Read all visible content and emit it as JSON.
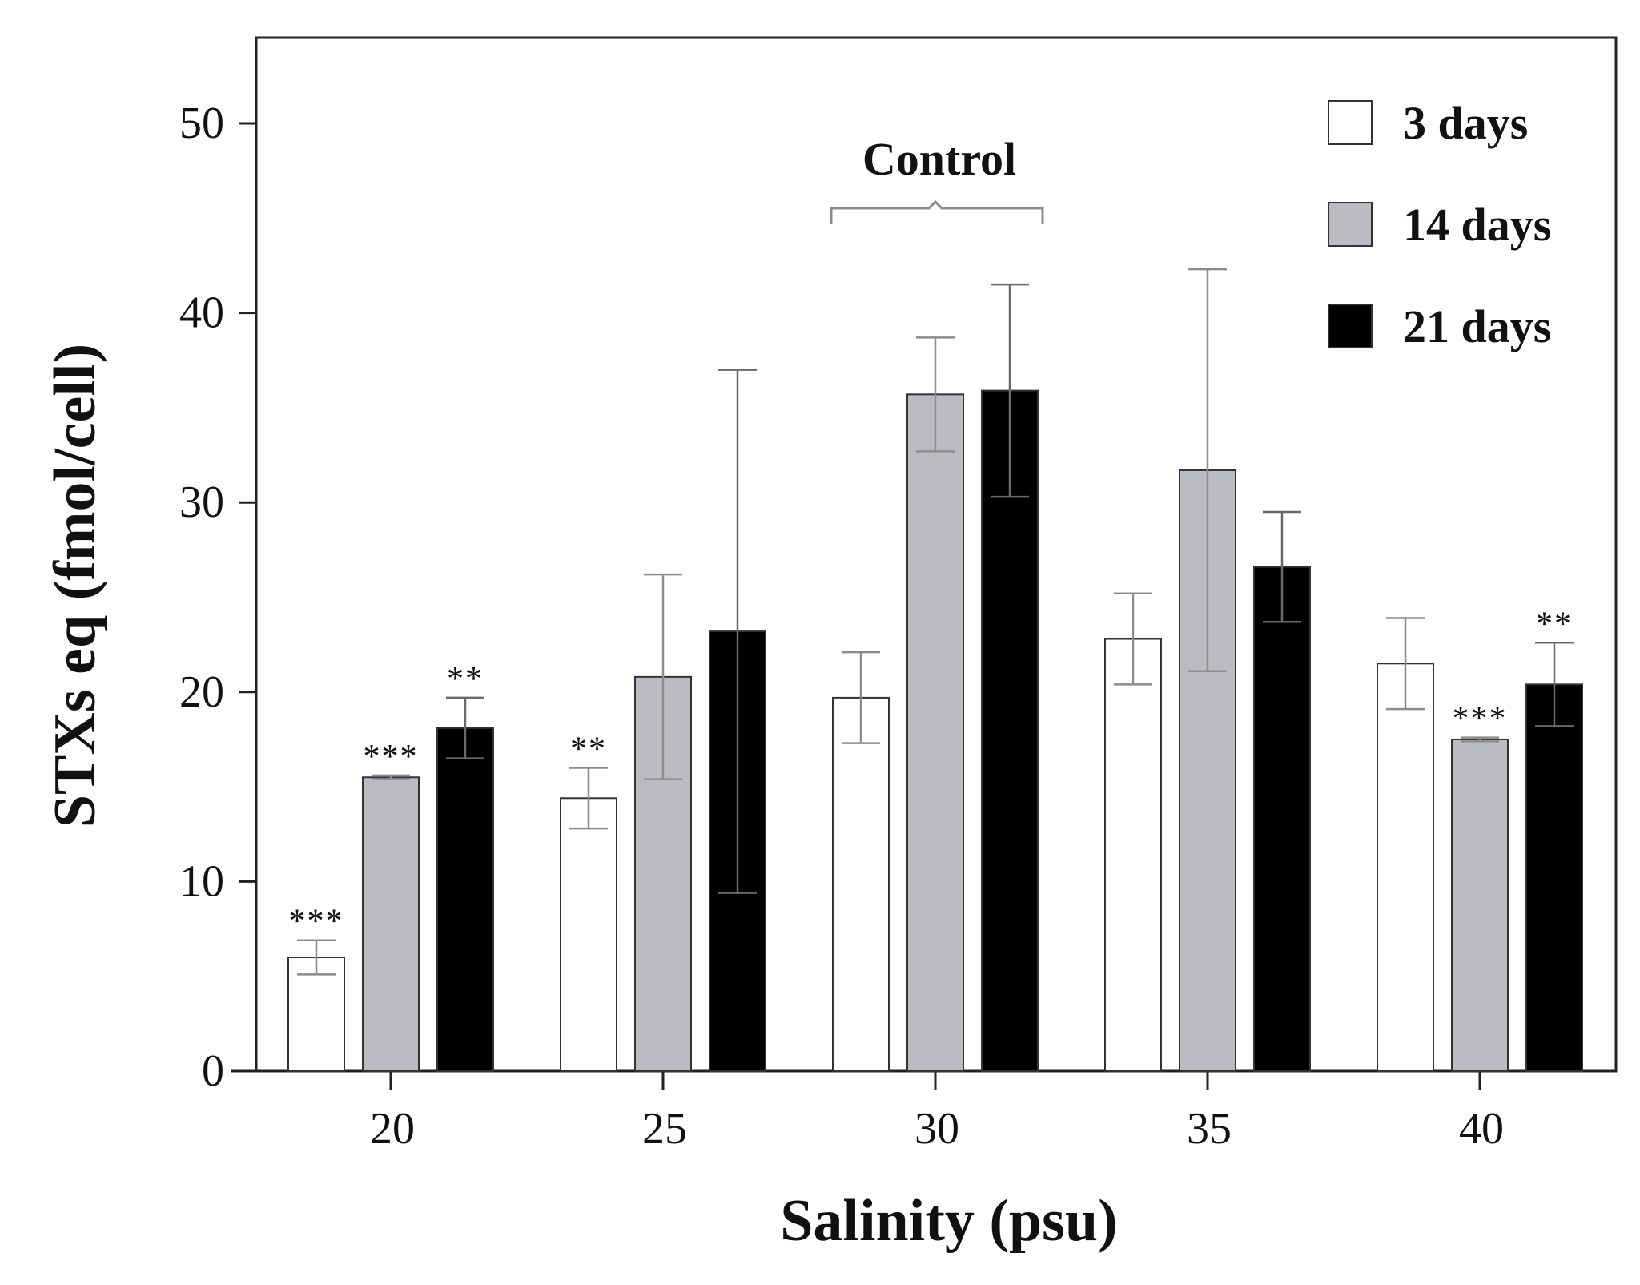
{
  "chart_data": {
    "type": "bar",
    "xlabel": "Salinity (psu)",
    "ylabel": "STXs eq (fmol/cell)",
    "ylim": [
      0,
      55
    ],
    "yticks": [
      0,
      10,
      20,
      30,
      40,
      50
    ],
    "categories": [
      "20",
      "25",
      "30",
      "35",
      "40"
    ],
    "legend_position": "top-right",
    "series": [
      {
        "name": "3 days",
        "color": "#ffffff",
        "values": [
          6.0,
          14.4,
          19.7,
          22.8,
          21.5
        ],
        "errors": [
          0.9,
          1.6,
          2.4,
          2.4,
          2.4
        ],
        "significance": [
          "***",
          "**",
          "",
          "",
          ""
        ]
      },
      {
        "name": "14 days",
        "color": "#bbbbc3",
        "values": [
          15.5,
          20.8,
          35.7,
          31.7,
          17.5
        ],
        "errors": [
          0.1,
          5.4,
          3.0,
          10.6,
          0.1
        ],
        "significance": [
          "***",
          "",
          "",
          "",
          "***"
        ]
      },
      {
        "name": "21 days",
        "color": "#000000",
        "values": [
          18.1,
          23.2,
          35.9,
          26.6,
          20.4
        ],
        "errors": [
          1.6,
          13.8,
          5.6,
          2.9,
          2.2
        ],
        "significance": [
          "**",
          "",
          "",
          "",
          "**"
        ]
      }
    ],
    "annotations": [
      {
        "text": "Control",
        "category": "30"
      }
    ]
  }
}
